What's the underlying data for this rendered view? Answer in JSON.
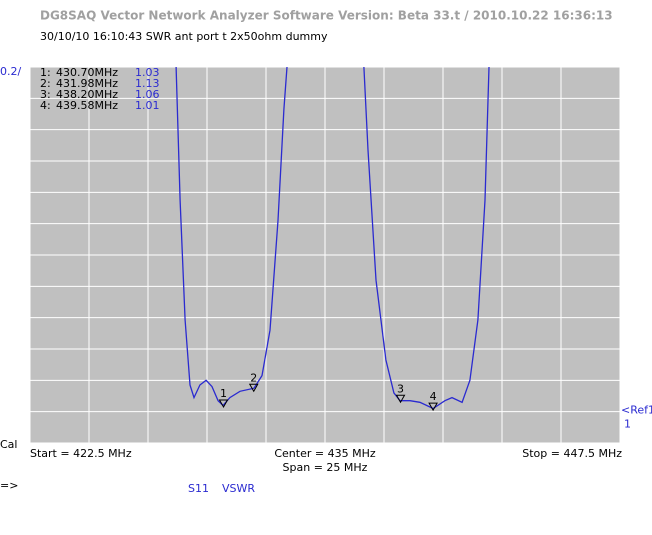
{
  "window_title": "DG8SAQ Vector Network Analyzer Software   Version:  Beta 33.t / 2010.10.22 16:36:13",
  "chart_data": {
    "type": "line",
    "subtitle": "30/10/10   16:10:43   SWR ant port t 2x50ohm dummy",
    "scale_label": "0.2/",
    "xlim": [
      422.5,
      447.5
    ],
    "ylim": [
      0.8,
      3.2
    ],
    "grid": true,
    "x": [
      428.69,
      428.86,
      429.07,
      429.28,
      429.45,
      429.7,
      429.96,
      430.21,
      430.47,
      430.68,
      430.97,
      431.4,
      431.99,
      432.33,
      432.67,
      433.01,
      433.26,
      433.39,
      null,
      436.65,
      436.82,
      437.16,
      437.58,
      437.92,
      438.18,
      438.6,
      439.02,
      439.58,
      440.08,
      440.38,
      440.81,
      441.14,
      441.48,
      441.78,
      441.95
    ],
    "series": [
      {
        "name": "S11",
        "measure": "VSWR",
        "color": "#2a2ad0",
        "values": [
          3.2,
          2.35,
          1.585,
          1.17,
          1.09,
          1.17,
          1.2,
          1.16,
          1.07,
          1.04,
          1.09,
          1.13,
          1.15,
          1.23,
          1.52,
          2.22,
          2.93,
          3.2,
          null,
          3.2,
          2.67,
          1.84,
          1.33,
          1.12,
          1.07,
          1.07,
          1.06,
          1.02,
          1.07,
          1.09,
          1.06,
          1.2,
          1.585,
          2.35,
          3.2
        ]
      }
    ],
    "markers": [
      {
        "index_label": "1:",
        "label": "1",
        "x": 430.7,
        "x_label": "430.70MHz",
        "value": 1.03
      },
      {
        "index_label": "2:",
        "label": "2",
        "x": 431.98,
        "x_label": "431.98MHz",
        "value": 1.13
      },
      {
        "index_label": "3:",
        "label": "3",
        "x": 438.2,
        "x_label": "438.20MHz",
        "value": 1.06
      },
      {
        "index_label": "4:",
        "label": "4",
        "x": 439.58,
        "x_label": "439.58MHz",
        "value": 1.01
      }
    ],
    "reference": {
      "label": "<Ref1",
      "value": 1
    },
    "start_label": "Start = 422.5 MHz",
    "center_label": "Center = 435 MHz",
    "span_label": "Span = 25 MHz",
    "stop_label": "Stop = 447.5 MHz"
  },
  "status": {
    "cal": "Cal",
    "prompt": "=>"
  }
}
